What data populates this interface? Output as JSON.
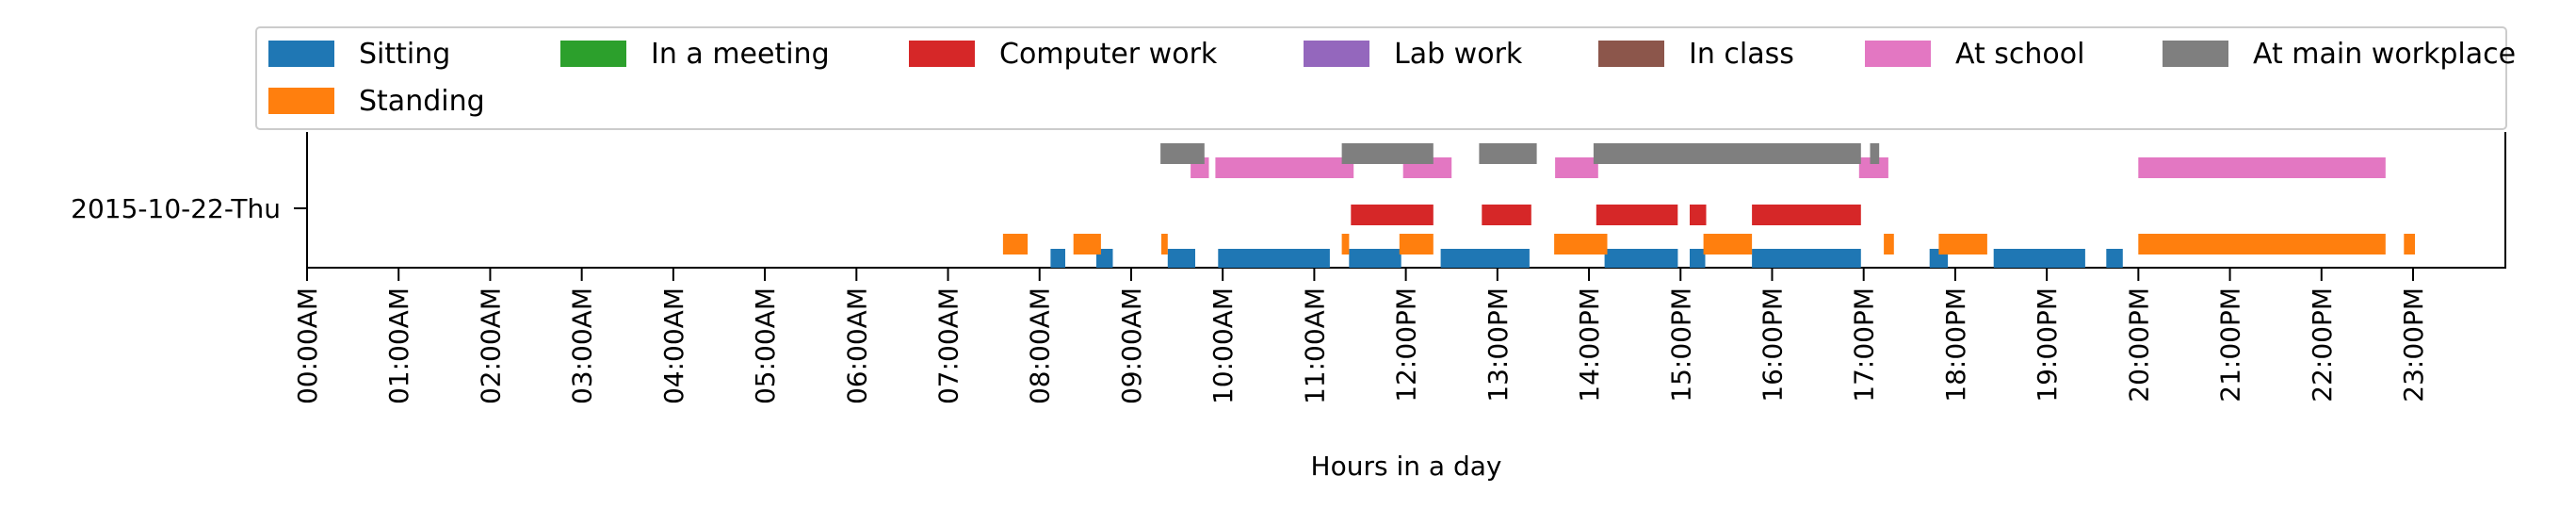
{
  "chart_data": {
    "type": "timeline",
    "title": "",
    "xlabel": "Hours in a day",
    "ylabel": "",
    "xlim": [
      0,
      24
    ],
    "row_label": "2015-10-22-Thu",
    "x_ticks": [
      "00:00AM",
      "01:00AM",
      "02:00AM",
      "03:00AM",
      "04:00AM",
      "05:00AM",
      "06:00AM",
      "07:00AM",
      "08:00AM",
      "09:00AM",
      "10:00AM",
      "11:00AM",
      "12:00PM",
      "13:00PM",
      "14:00PM",
      "15:00PM",
      "16:00PM",
      "17:00PM",
      "18:00PM",
      "19:00PM",
      "20:00PM",
      "21:00PM",
      "22:00PM",
      "23:00PM"
    ],
    "legend": {
      "placement": "top",
      "columns": 7
    },
    "series": [
      {
        "name": "Sitting",
        "color": "#1f77b4",
        "intervals": [
          [
            8.12,
            8.28
          ],
          [
            8.62,
            8.8
          ],
          [
            9.4,
            9.7
          ],
          [
            9.95,
            11.17
          ],
          [
            11.38,
            11.95
          ],
          [
            12.38,
            13.35
          ],
          [
            14.17,
            14.97
          ],
          [
            15.1,
            15.27
          ],
          [
            15.78,
            16.97
          ],
          [
            17.72,
            17.92
          ],
          [
            18.42,
            19.42
          ],
          [
            19.65,
            19.83
          ]
        ]
      },
      {
        "name": "Standing",
        "color": "#ff7f0e",
        "intervals": [
          [
            7.6,
            7.87
          ],
          [
            8.37,
            8.67
          ],
          [
            9.33,
            9.4
          ],
          [
            11.3,
            11.38
          ],
          [
            11.93,
            12.3
          ],
          [
            13.62,
            14.2
          ],
          [
            15.25,
            15.78
          ],
          [
            17.22,
            17.33
          ],
          [
            17.82,
            18.35
          ],
          [
            20.0,
            22.7
          ],
          [
            22.9,
            23.02
          ]
        ]
      },
      {
        "name": "In a meeting",
        "color": "#2ca02c",
        "intervals": []
      },
      {
        "name": "Computer work",
        "color": "#d62728",
        "intervals": [
          [
            11.4,
            12.3
          ],
          [
            12.83,
            13.37
          ],
          [
            14.08,
            14.97
          ],
          [
            15.1,
            15.28
          ],
          [
            15.78,
            16.97
          ]
        ]
      },
      {
        "name": "Lab work",
        "color": "#9467bd",
        "intervals": []
      },
      {
        "name": "In class",
        "color": "#8c564b",
        "intervals": []
      },
      {
        "name": "At school",
        "color": "#e377c2",
        "intervals": [
          [
            9.65,
            9.85
          ],
          [
            9.92,
            11.43
          ],
          [
            11.97,
            12.5
          ],
          [
            13.63,
            14.1
          ],
          [
            16.95,
            17.27
          ],
          [
            20.0,
            22.7
          ]
        ]
      },
      {
        "name": "At main workplace",
        "color": "#7f7f7f",
        "intervals": [
          [
            9.32,
            9.8
          ],
          [
            11.3,
            12.3
          ],
          [
            12.8,
            13.43
          ],
          [
            14.05,
            16.97
          ],
          [
            17.07,
            17.17
          ]
        ]
      }
    ]
  }
}
